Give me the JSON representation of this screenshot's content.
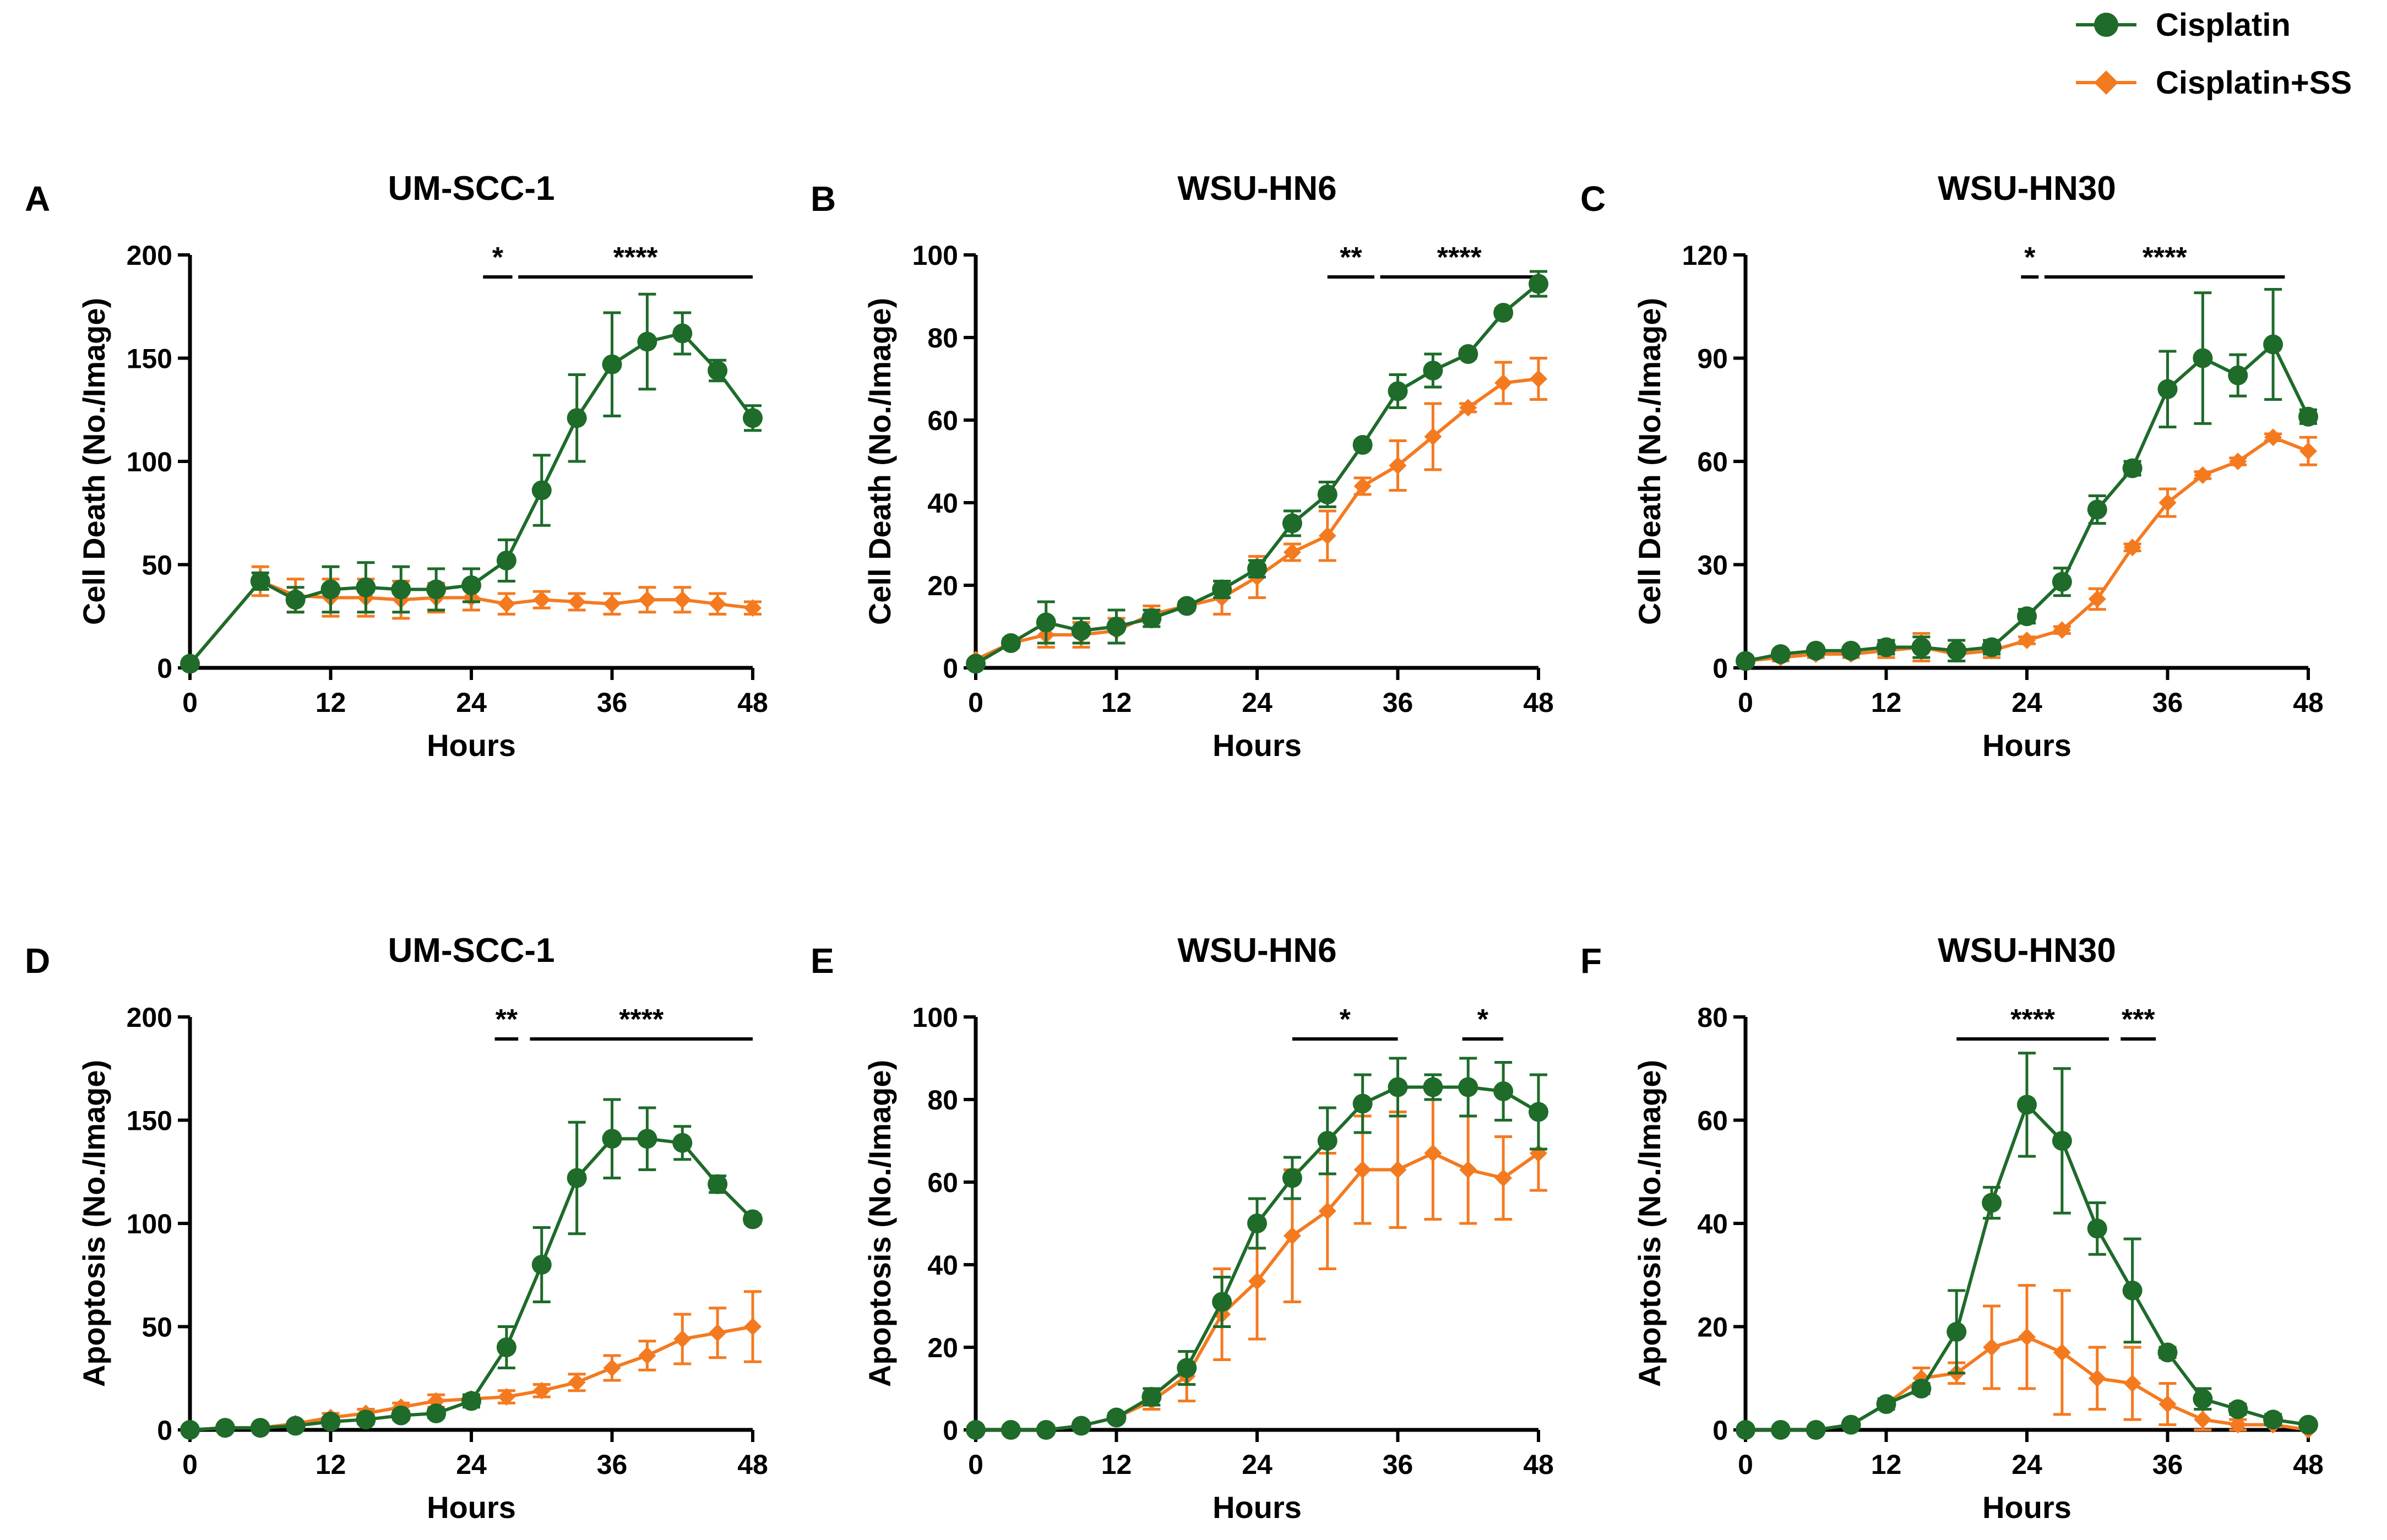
{
  "legend": {
    "entries": [
      {
        "name": "Cisplatin",
        "color": "#1e6b2a",
        "marker": "circle"
      },
      {
        "name": "Cisplatin+SS",
        "color": "#f47a20",
        "marker": "diamond"
      }
    ]
  },
  "chart_data": [
    {
      "panel": "A",
      "type": "line",
      "title": "UM-SCC-1",
      "xlabel": "Hours",
      "ylabel": "Cell Death (No./Image)",
      "xlim": [
        0,
        48
      ],
      "xticks": [
        0,
        12,
        24,
        36,
        48
      ],
      "ylim": [
        0,
        200
      ],
      "yticks": [
        0,
        50,
        100,
        150,
        200
      ],
      "series": [
        {
          "name": "Cisplatin",
          "x": [
            0,
            6,
            9,
            12,
            15,
            18,
            21,
            24,
            27,
            30,
            33,
            36,
            39,
            42,
            45,
            48
          ],
          "values": [
            2,
            42,
            33,
            38,
            39,
            38,
            38,
            40,
            52,
            86,
            121,
            147,
            158,
            162,
            144,
            121
          ],
          "errors": [
            0,
            4,
            6,
            11,
            12,
            11,
            10,
            8,
            10,
            17,
            21,
            25,
            23,
            10,
            5,
            6
          ]
        },
        {
          "name": "Cisplatin+SS",
          "x": [
            0,
            6,
            9,
            12,
            15,
            18,
            21,
            24,
            27,
            30,
            33,
            36,
            39,
            42,
            45,
            48
          ],
          "values": [
            2,
            42,
            35,
            34,
            34,
            33,
            34,
            34,
            31,
            33,
            32,
            31,
            33,
            33,
            31,
            29
          ],
          "errors": [
            0,
            7,
            8,
            9,
            9,
            9,
            7,
            6,
            5,
            4,
            4,
            5,
            6,
            6,
            5,
            3
          ]
        }
      ],
      "significance": [
        {
          "label": "*",
          "x": [
            25,
            27.5
          ]
        },
        {
          "label": "****",
          "x": [
            28,
            48
          ]
        }
      ]
    },
    {
      "panel": "B",
      "type": "line",
      "title": "WSU-HN6",
      "xlabel": "Hours",
      "ylabel": "Cell Death (No./Image)",
      "xlim": [
        0,
        48
      ],
      "xticks": [
        0,
        12,
        24,
        36,
        48
      ],
      "ylim": [
        0,
        100
      ],
      "yticks": [
        0,
        20,
        40,
        60,
        80,
        100
      ],
      "series": [
        {
          "name": "Cisplatin",
          "x": [
            0,
            3,
            6,
            9,
            12,
            15,
            18,
            21,
            24,
            27,
            30,
            33,
            36,
            39,
            42,
            45,
            48
          ],
          "values": [
            1,
            6,
            11,
            9,
            10,
            12,
            15,
            19,
            24,
            35,
            42,
            54,
            67,
            72,
            76,
            86,
            93
          ],
          "errors": [
            0,
            1,
            5,
            3,
            4,
            2,
            1,
            2,
            2,
            3,
            3,
            1,
            4,
            4,
            1,
            1,
            3
          ]
        },
        {
          "name": "Cisplatin+SS",
          "x": [
            0,
            3,
            6,
            9,
            12,
            15,
            18,
            21,
            24,
            27,
            30,
            33,
            36,
            39,
            42,
            45,
            48
          ],
          "values": [
            2,
            6,
            8,
            8,
            9,
            13,
            15,
            17,
            22,
            28,
            32,
            44,
            49,
            56,
            63,
            69,
            70
          ],
          "errors": [
            0,
            1,
            3,
            3,
            3,
            2,
            1,
            4,
            5,
            2,
            6,
            2,
            6,
            8,
            1,
            5,
            5
          ]
        }
      ],
      "significance": [
        {
          "label": "**",
          "x": [
            30,
            34
          ]
        },
        {
          "label": "****",
          "x": [
            34.5,
            48
          ]
        }
      ]
    },
    {
      "panel": "C",
      "type": "line",
      "title": "WSU-HN30",
      "xlabel": "Hours",
      "ylabel": "Cell Death (No./Image)",
      "xlim": [
        0,
        48
      ],
      "xticks": [
        0,
        12,
        24,
        36,
        48
      ],
      "ylim": [
        0,
        120
      ],
      "yticks": [
        0,
        30,
        60,
        90,
        120
      ],
      "series": [
        {
          "name": "Cisplatin",
          "x": [
            0,
            3,
            6,
            9,
            12,
            15,
            18,
            21,
            24,
            27,
            30,
            33,
            36,
            39,
            42,
            45,
            48
          ],
          "values": [
            2,
            4,
            5,
            5,
            6,
            6,
            5,
            6,
            15,
            25,
            46,
            58,
            81,
            90,
            85,
            94,
            73
          ],
          "errors": [
            0,
            1,
            1,
            1,
            2,
            3,
            3,
            2,
            2,
            4,
            4,
            2,
            11,
            19,
            6,
            16,
            2
          ]
        },
        {
          "name": "Cisplatin+SS",
          "x": [
            0,
            3,
            6,
            9,
            12,
            15,
            18,
            21,
            24,
            27,
            30,
            33,
            36,
            39,
            42,
            45,
            48
          ],
          "values": [
            2,
            3,
            4,
            4,
            5,
            6,
            4,
            5,
            8,
            11,
            20,
            35,
            48,
            56,
            60,
            67,
            63
          ],
          "errors": [
            0,
            1,
            1,
            1,
            2,
            4,
            2,
            2,
            1,
            1,
            3,
            1,
            4,
            1,
            1,
            1,
            4
          ]
        }
      ],
      "significance": [
        {
          "label": "*",
          "x": [
            23.5,
            25
          ]
        },
        {
          "label": "****",
          "x": [
            25.5,
            46
          ]
        }
      ]
    },
    {
      "panel": "D",
      "type": "line",
      "title": "UM-SCC-1",
      "xlabel": "Hours",
      "ylabel": "Apoptosis (No./Image)",
      "xlim": [
        0,
        48
      ],
      "xticks": [
        0,
        12,
        24,
        36,
        48
      ],
      "ylim": [
        0,
        200
      ],
      "yticks": [
        0,
        50,
        100,
        150,
        200
      ],
      "series": [
        {
          "name": "Cisplatin",
          "x": [
            0,
            3,
            6,
            9,
            12,
            15,
            18,
            21,
            24,
            27,
            30,
            33,
            36,
            39,
            42,
            45,
            48
          ],
          "values": [
            0,
            1,
            1,
            2,
            4,
            5,
            7,
            8,
            14,
            40,
            80,
            122,
            141,
            141,
            139,
            119,
            102
          ],
          "errors": [
            0,
            0,
            0,
            1,
            2,
            2,
            2,
            2,
            3,
            10,
            18,
            27,
            19,
            15,
            8,
            4,
            2
          ]
        },
        {
          "name": "Cisplatin+SS",
          "x": [
            0,
            3,
            6,
            9,
            12,
            15,
            18,
            21,
            24,
            27,
            30,
            33,
            36,
            39,
            42,
            45,
            48
          ],
          "values": [
            0,
            1,
            1,
            3,
            6,
            8,
            11,
            14,
            15,
            16,
            19,
            23,
            30,
            36,
            44,
            47,
            50
          ],
          "errors": [
            0,
            0,
            0,
            1,
            2,
            2,
            2,
            3,
            2,
            3,
            3,
            4,
            6,
            7,
            12,
            12,
            17
          ]
        }
      ],
      "significance": [
        {
          "label": "**",
          "x": [
            26,
            28
          ]
        },
        {
          "label": "****",
          "x": [
            29,
            48
          ]
        }
      ]
    },
    {
      "panel": "E",
      "type": "line",
      "title": "WSU-HN6",
      "xlabel": "Hours",
      "ylabel": "Apoptosis (No./Image)",
      "xlim": [
        0,
        48
      ],
      "xticks": [
        0,
        12,
        24,
        36,
        48
      ],
      "ylim": [
        0,
        100
      ],
      "yticks": [
        0,
        20,
        40,
        60,
        80,
        100
      ],
      "series": [
        {
          "name": "Cisplatin",
          "x": [
            0,
            3,
            6,
            9,
            12,
            15,
            18,
            21,
            24,
            27,
            30,
            33,
            36,
            39,
            42,
            45,
            48
          ],
          "values": [
            0,
            0,
            0,
            1,
            3,
            8,
            15,
            31,
            50,
            61,
            70,
            79,
            83,
            83,
            83,
            82,
            77
          ],
          "errors": [
            0,
            0,
            0,
            0,
            1,
            2,
            4,
            6,
            6,
            5,
            8,
            7,
            7,
            3,
            7,
            7,
            9
          ]
        },
        {
          "name": "Cisplatin+SS",
          "x": [
            0,
            3,
            6,
            9,
            12,
            15,
            18,
            21,
            24,
            27,
            30,
            33,
            36,
            39,
            42,
            45,
            48
          ],
          "values": [
            0,
            0,
            0,
            1,
            3,
            7,
            13,
            28,
            36,
            47,
            53,
            63,
            63,
            67,
            63,
            61,
            67
          ],
          "errors": [
            0,
            0,
            0,
            0,
            1,
            2,
            6,
            11,
            14,
            16,
            14,
            13,
            14,
            16,
            13,
            10,
            9
          ]
        }
      ],
      "significance": [
        {
          "label": "*",
          "x": [
            27,
            36
          ]
        },
        {
          "label": "*",
          "x": [
            41.5,
            45
          ]
        }
      ]
    },
    {
      "panel": "F",
      "type": "line",
      "title": "WSU-HN30",
      "xlabel": "Hours",
      "ylabel": "Apoptosis (No./Image)",
      "xlim": [
        0,
        48
      ],
      "xticks": [
        0,
        12,
        24,
        36,
        48
      ],
      "ylim": [
        0,
        80
      ],
      "yticks": [
        0,
        20,
        40,
        60,
        80
      ],
      "series": [
        {
          "name": "Cisplatin",
          "x": [
            0,
            3,
            6,
            9,
            12,
            15,
            18,
            21,
            24,
            27,
            30,
            33,
            36,
            39,
            42,
            45,
            48
          ],
          "values": [
            0,
            0,
            0,
            1,
            5,
            8,
            19,
            44,
            63,
            56,
            39,
            27,
            15,
            6,
            4,
            2,
            1
          ],
          "errors": [
            0,
            0,
            0,
            0,
            1,
            1,
            8,
            3,
            10,
            14,
            5,
            10,
            1,
            2,
            1,
            1,
            0
          ]
        },
        {
          "name": "Cisplatin+SS",
          "x": [
            0,
            3,
            6,
            9,
            12,
            15,
            18,
            21,
            24,
            27,
            30,
            33,
            36,
            39,
            42,
            45,
            48
          ],
          "values": [
            0,
            0,
            0,
            1,
            5,
            10,
            11,
            16,
            18,
            15,
            10,
            9,
            5,
            2,
            1,
            1,
            0
          ],
          "errors": [
            0,
            0,
            0,
            0,
            1,
            2,
            2,
            8,
            10,
            12,
            6,
            7,
            4,
            2,
            1,
            0,
            0
          ]
        }
      ],
      "significance": [
        {
          "label": "****",
          "x": [
            18,
            31
          ]
        },
        {
          "label": "***",
          "x": [
            32,
            35
          ]
        }
      ]
    }
  ]
}
